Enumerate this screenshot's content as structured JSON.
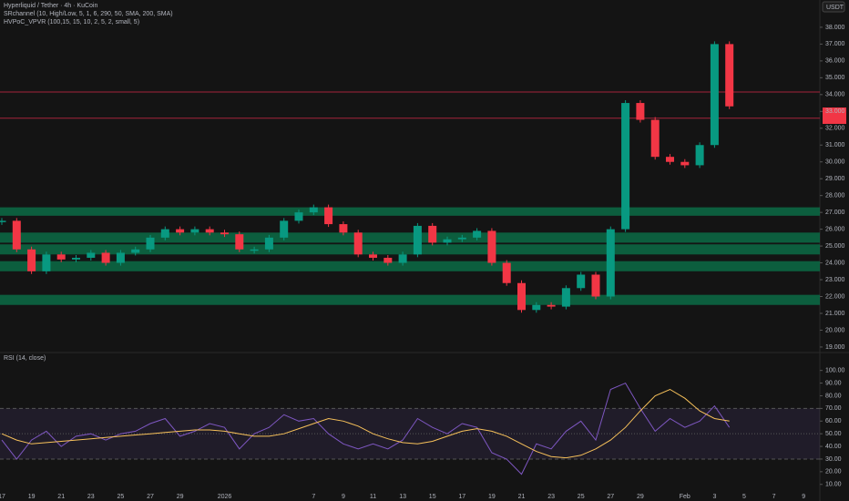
{
  "chart_data": [
    {
      "type": "candlestick",
      "title": "Hyperliquid / Tether · 4h · KuCoin",
      "indicators": [
        "SRchannel (10, High/Low, 5, 1, 6, 290, 50, SMA, 200, SMA)",
        "HVPoC_VPVR (100,15, 15, 10, 2, 5, 2, small, 5)"
      ],
      "y_axis_label": "USDT",
      "categories": [
        "17",
        null,
        "19",
        null,
        "21",
        null,
        "23",
        null,
        "25",
        null,
        "27",
        null,
        "29",
        null,
        null,
        "2026",
        null,
        null,
        null,
        null,
        null,
        "7",
        null,
        "9",
        null,
        "11",
        null,
        "13",
        null,
        "15",
        null,
        "17",
        null,
        "19",
        null,
        "21",
        null,
        "23",
        null,
        "25",
        null,
        "27",
        null,
        "29",
        null,
        null,
        "Feb",
        null,
        "3",
        null,
        "5",
        null,
        "7",
        null,
        "9"
      ],
      "series": [
        {
          "name": "close",
          "color_up": "#089981",
          "color_down": "#f23645",
          "values": [
            26.5,
            24.8,
            23.5,
            24.5,
            24.2,
            24.3,
            24.6,
            24.0,
            24.6,
            24.8,
            25.5,
            26.0,
            25.8,
            26.0,
            25.8,
            25.7,
            24.8,
            24.8,
            25.5,
            26.5,
            27.0,
            27.3,
            26.3,
            25.8,
            24.5,
            24.3,
            24.0,
            24.5,
            26.2,
            25.2,
            25.4,
            25.5,
            25.9,
            24.0,
            22.8,
            21.2,
            21.5,
            21.4,
            22.5,
            23.3,
            22.0,
            26.0,
            33.5,
            32.5,
            30.3,
            30.0,
            29.8,
            31.0,
            37.0,
            33.3,
            null,
            null,
            null,
            null,
            null
          ]
        }
      ],
      "zones": [
        [
          26.8,
          27.3
        ],
        [
          25.2,
          25.8
        ],
        [
          24.5,
          25.1
        ],
        [
          23.5,
          24.1
        ],
        [
          21.5,
          22.1
        ]
      ],
      "zone_color": "#0b6b45",
      "levels": [
        34.15,
        32.6
      ],
      "level_color": "#a3243a",
      "ylim": [
        18.78,
        39.62
      ],
      "yticks": [
        {
          "value": 19,
          "label": "19.000"
        },
        {
          "value": 20,
          "label": "20.000"
        },
        {
          "value": 21,
          "label": "21.000"
        },
        {
          "value": 22,
          "label": "22.000"
        },
        {
          "value": 23,
          "label": "23.000"
        },
        {
          "value": 24,
          "label": "24.000"
        },
        {
          "value": 25,
          "label": "25.000"
        },
        {
          "value": 26,
          "label": "26.000"
        },
        {
          "value": 27,
          "label": "27.000"
        },
        {
          "value": 28,
          "label": "28.000"
        },
        {
          "value": 29,
          "label": "29.000"
        },
        {
          "value": 30,
          "label": "30.000"
        },
        {
          "value": 31,
          "label": "31.000"
        },
        {
          "value": 32,
          "label": "32.000"
        },
        {
          "value": 33,
          "label": "33.000"
        },
        {
          "value": 34,
          "label": "34.000"
        },
        {
          "value": 35,
          "label": "35.000"
        },
        {
          "value": 36,
          "label": "36.000"
        },
        {
          "value": 37,
          "label": "37.000"
        },
        {
          "value": 38,
          "label": "38.000"
        }
      ]
    },
    {
      "type": "line",
      "title": "RSI (14, close)",
      "series": [
        {
          "name": "RSI",
          "color": "#7e57c2",
          "values": [
            45,
            30,
            45,
            52,
            40,
            48,
            50,
            45,
            50,
            52,
            58,
            62,
            48,
            52,
            58,
            55,
            38,
            50,
            55,
            65,
            60,
            62,
            50,
            42,
            38,
            42,
            38,
            45,
            62,
            55,
            50,
            58,
            55,
            35,
            30,
            18,
            42,
            38,
            52,
            60,
            45,
            85,
            90,
            70,
            52,
            62,
            55,
            60,
            72,
            55,
            null,
            null,
            null,
            null,
            null
          ]
        },
        {
          "name": "MA",
          "color": "#f7c15a",
          "values": [
            50,
            45,
            42,
            43,
            44,
            45,
            46,
            47,
            48,
            49,
            50,
            51,
            52,
            53,
            53,
            52,
            50,
            48,
            48,
            50,
            54,
            58,
            62,
            60,
            56,
            50,
            46,
            43,
            42,
            44,
            48,
            52,
            54,
            52,
            48,
            42,
            36,
            32,
            31,
            33,
            38,
            45,
            55,
            68,
            80,
            85,
            78,
            68,
            62,
            60,
            null,
            null,
            null,
            null,
            null
          ]
        }
      ],
      "bands": [
        30,
        50,
        70
      ],
      "ylim": [
        5.5,
        112
      ],
      "yticks": [
        {
          "value": 10,
          "label": "10.00"
        },
        {
          "value": 20,
          "label": "20.00"
        },
        {
          "value": 30,
          "label": "30.00"
        },
        {
          "value": 40,
          "label": "40.00"
        },
        {
          "value": 50,
          "label": "50.00"
        },
        {
          "value": 60,
          "label": "60.00"
        },
        {
          "value": 70,
          "label": "70.00"
        },
        {
          "value": 80,
          "label": "80.00"
        },
        {
          "value": 90,
          "label": "90.00"
        },
        {
          "value": 100,
          "label": "100.00"
        }
      ]
    }
  ]
}
